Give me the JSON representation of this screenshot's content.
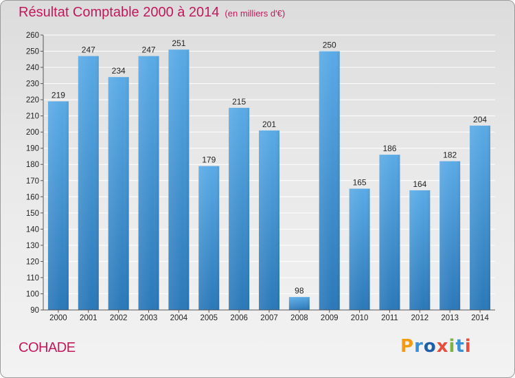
{
  "header": {
    "title": "Résultat Comptable 2000 à 2014",
    "subtitle": "(en milliers d'€)"
  },
  "footer": {
    "commune": "COHADE",
    "logo": "Proxiti"
  },
  "colors": {
    "title": "#c2185b",
    "bar_top": "#5aaae6",
    "bar_bottom": "#2a78b8",
    "grid": "#ffffff",
    "logo_letters": [
      "#f39c12",
      "#3a8fd6",
      "#1f5fa8",
      "#e74c3c",
      "#7cb342",
      "#3a8fd6",
      "#e74c3c"
    ]
  },
  "chart_data": {
    "type": "bar",
    "title": "Résultat Comptable 2000 à 2014",
    "subtitle": "(en milliers d'€)",
    "xlabel": "",
    "ylabel": "",
    "categories": [
      "2000",
      "2001",
      "2002",
      "2003",
      "2004",
      "2005",
      "2006",
      "2007",
      "2008",
      "2009",
      "2010",
      "2011",
      "2012",
      "2013",
      "2014"
    ],
    "values": [
      219,
      247,
      234,
      247,
      251,
      179,
      215,
      201,
      98,
      250,
      165,
      186,
      164,
      182,
      204
    ],
    "ylim": [
      90,
      260
    ],
    "yticks": [
      90,
      100,
      110,
      120,
      130,
      140,
      150,
      160,
      170,
      180,
      190,
      200,
      210,
      220,
      230,
      240,
      250,
      260
    ],
    "grid": true,
    "legend": "none"
  }
}
